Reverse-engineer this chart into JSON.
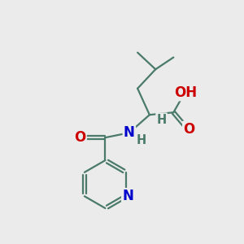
{
  "background_color": "#ebebeb",
  "bond_color": "#4a7a6a",
  "bond_width": 1.6,
  "atom_colors": {
    "O": "#cc0000",
    "N": "#0000cc",
    "H": "#4a7a6a",
    "C": "#4a7a6a"
  },
  "font_size": 12,
  "font_size_small": 10.5
}
